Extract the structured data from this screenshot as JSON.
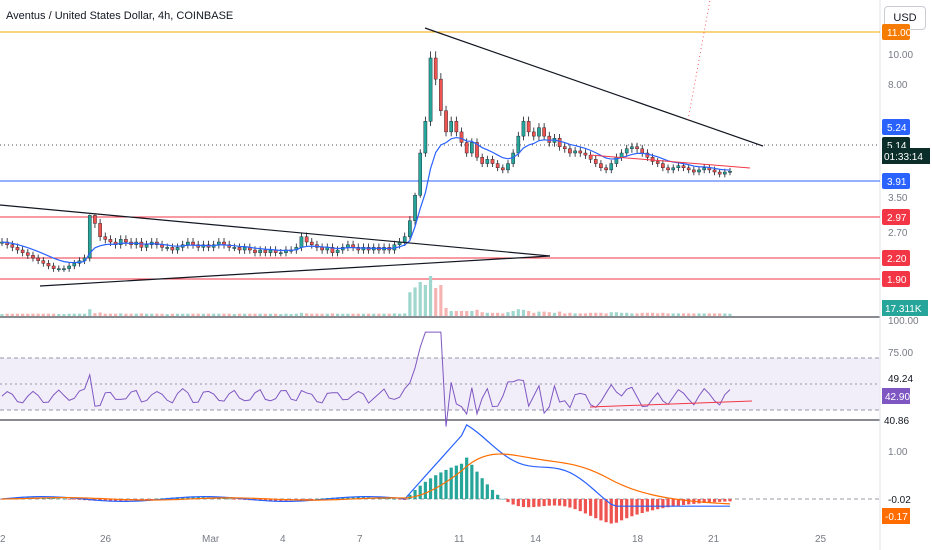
{
  "title": "Aventus / United States Dollar, 4h, COINBASE",
  "currency_button": "USD",
  "colors": {
    "up": "#26a69a",
    "down": "#ef5350",
    "ema": "#2962ff",
    "rsi": "#7e57c2",
    "signal": "#ff6d00",
    "resistance": "#f7a600",
    "support_red": "#f23645",
    "support_blue": "#2962ff"
  },
  "chart_data": [
    {
      "type": "line",
      "subtype": "candlestick",
      "x_tick_labels": [
        "2",
        "26",
        "Mar",
        "4",
        "7",
        "11",
        "14",
        "18",
        "21",
        "25"
      ],
      "y_tick_labels": [
        "10.00",
        "8.00",
        "3.50",
        "2.70"
      ],
      "price_labels": [
        {
          "value": "11.00",
          "color": "#f57c00"
        },
        {
          "value": "5.24",
          "color": "#2962ff"
        },
        {
          "value": "5.14",
          "color": "#0b2e2a"
        },
        {
          "value": "3.91",
          "color": "#2962ff"
        },
        {
          "value": "2.97",
          "color": "#f23645"
        },
        {
          "value": "2.20",
          "color": "#f23645"
        },
        {
          "value": "1.90",
          "color": "#f23645"
        }
      ],
      "countdown": "01:33:14",
      "volume_label": "17.311K",
      "series_close": [
        2.5,
        2.45,
        2.4,
        2.35,
        2.3,
        2.25,
        2.2,
        2.15,
        2.1,
        2.05,
        2.0,
        2.0,
        2.0,
        2.05,
        2.1,
        2.15,
        2.2,
        3.0,
        2.85,
        2.6,
        2.55,
        2.5,
        2.45,
        2.55,
        2.5,
        2.45,
        2.5,
        2.4,
        2.45,
        2.5,
        2.45,
        2.4,
        2.4,
        2.35,
        2.4,
        2.45,
        2.5,
        2.45,
        2.4,
        2.45,
        2.4,
        2.45,
        2.5,
        2.45,
        2.4,
        2.4,
        2.35,
        2.4,
        2.35,
        2.3,
        2.35,
        2.3,
        2.35,
        2.3,
        2.3,
        2.35,
        2.35,
        2.4,
        2.6,
        2.5,
        2.45,
        2.4,
        2.35,
        2.4,
        2.3,
        2.35,
        2.4,
        2.45,
        2.4,
        2.35,
        2.4,
        2.35,
        2.4,
        2.35,
        2.4,
        2.35,
        2.45,
        2.5,
        2.6,
        2.9,
        4.0,
        6.0,
        7.5,
        10.5,
        9.5,
        8.0,
        7.0,
        7.5,
        7.0,
        6.5,
        6.0,
        6.5,
        5.8,
        5.5,
        5.7,
        5.5,
        5.3,
        5.2,
        5.5,
        6.0,
        6.8,
        7.5,
        7.0,
        6.8,
        7.2,
        6.8,
        6.5,
        6.7,
        6.3,
        6.2,
        6.0,
        6.1,
        6.0,
        5.9,
        5.7,
        5.5,
        5.3,
        5.2,
        5.5,
        5.8,
        6.0,
        6.2,
        6.3,
        6.2,
        6.0,
        5.8,
        5.6,
        5.5,
        5.3,
        5.2,
        5.3,
        5.4,
        5.3,
        5.2,
        5.1,
        5.2,
        5.3,
        5.2,
        5.1,
        5.0,
        5.1,
        5.14
      ],
      "rsi_label_high": "75.00",
      "rsi_label_mid": "49.24",
      "rsi_value": "42.90",
      "rsi_label_low": "40.86",
      "rsi_top_label": "100.00",
      "macd_tick_label": "1.00",
      "macd_value": "-0.02",
      "macd_signal": "-0.17"
    }
  ]
}
